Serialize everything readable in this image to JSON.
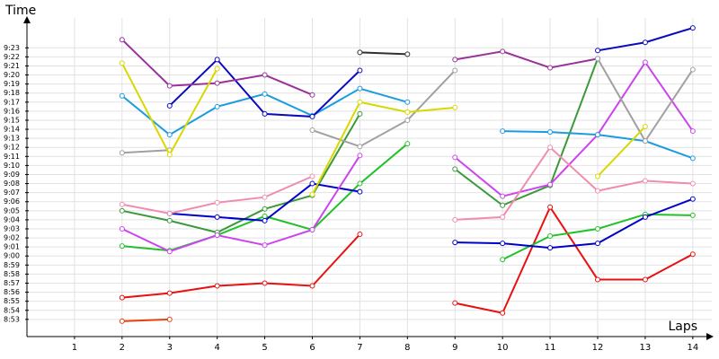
{
  "chart_data": {
    "type": "line",
    "y_label": "Time",
    "x_label": "Laps",
    "x": [
      1,
      2,
      3,
      4,
      5,
      6,
      7,
      8,
      9,
      10,
      11,
      12,
      13,
      14
    ],
    "xlim": [
      0,
      14.4
    ],
    "xticks": [
      1,
      2,
      3,
      4,
      5,
      6,
      7,
      8,
      9,
      10,
      11,
      12,
      13,
      14
    ],
    "ylim": [
      531.1,
      566.3
    ],
    "yticks": [
      {
        "value": 533,
        "label": "8:53"
      },
      {
        "value": 534,
        "label": "8:54"
      },
      {
        "value": 535,
        "label": "8:55"
      },
      {
        "value": 536,
        "label": "8:56"
      },
      {
        "value": 537,
        "label": "8:57"
      },
      {
        "value": 538,
        "label": "8:58"
      },
      {
        "value": 539,
        "label": "8:59"
      },
      {
        "value": 540,
        "label": "9:00"
      },
      {
        "value": 541,
        "label": "9:01"
      },
      {
        "value": 542,
        "label": "9:02"
      },
      {
        "value": 543,
        "label": "9:03"
      },
      {
        "value": 544,
        "label": "9:04"
      },
      {
        "value": 545,
        "label": "9:05"
      },
      {
        "value": 546,
        "label": "9:06"
      },
      {
        "value": 547,
        "label": "9:07"
      },
      {
        "value": 548,
        "label": "9:08"
      },
      {
        "value": 549,
        "label": "9:09"
      },
      {
        "value": 550,
        "label": "9:10"
      },
      {
        "value": 551,
        "label": "9:11"
      },
      {
        "value": 552,
        "label": "9:12"
      },
      {
        "value": 553,
        "label": "9:13"
      },
      {
        "value": 554,
        "label": "9:14"
      },
      {
        "value": 555,
        "label": "9:15"
      },
      {
        "value": 556,
        "label": "9:16"
      },
      {
        "value": 557,
        "label": "9:17"
      },
      {
        "value": 558,
        "label": "9:18"
      },
      {
        "value": 559,
        "label": "9:19"
      },
      {
        "value": 560,
        "label": "9:20"
      },
      {
        "value": 561,
        "label": "9:21"
      },
      {
        "value": 562,
        "label": "9:22"
      },
      {
        "value": 563,
        "label": "9:23"
      }
    ],
    "grid": true,
    "series": [
      {
        "color": "#e81010",
        "values": [
          null,
          535.4,
          535.9,
          536.7,
          537.0,
          536.7,
          542.4,
          null,
          534.8,
          533.7,
          545.4,
          537.4,
          537.4,
          540.2
        ]
      },
      {
        "color": "#e84010",
        "values": [
          null,
          532.8,
          533.0,
          null,
          null,
          null,
          null,
          null,
          null,
          null,
          null,
          null,
          null,
          null
        ]
      },
      {
        "color": "#22c02a",
        "values": [
          null,
          541.1,
          540.6,
          542.3,
          544.4,
          542.9,
          548.0,
          552.4,
          null,
          539.6,
          542.2,
          543.0,
          544.6,
          544.5
        ]
      },
      {
        "color": "#3a9a3a",
        "values": [
          null,
          545.0,
          543.9,
          542.6,
          545.2,
          546.7,
          555.7,
          null,
          549.6,
          545.6,
          547.8,
          561.8,
          null,
          null
        ]
      },
      {
        "color": "#0000cc",
        "values": [
          null,
          null,
          544.7,
          544.3,
          543.9,
          548.0,
          547.1,
          null,
          541.5,
          541.4,
          540.9,
          541.4,
          544.3,
          546.3
        ]
      },
      {
        "color": "#cc44ee",
        "values": [
          null,
          543.0,
          540.5,
          542.3,
          541.2,
          542.9,
          551.1,
          null,
          550.9,
          546.6,
          547.9,
          553.4,
          561.4,
          553.8
        ]
      },
      {
        "color": "#f08cb0",
        "values": [
          null,
          545.7,
          544.7,
          545.9,
          546.5,
          548.8,
          null,
          null,
          544.0,
          544.3,
          552.0,
          547.2,
          548.3,
          548.0
        ]
      },
      {
        "color": "#1c9ce0",
        "values": [
          null,
          557.7,
          553.4,
          556.5,
          557.9,
          555.5,
          558.5,
          557.0,
          null,
          553.8,
          553.7,
          553.4,
          552.7,
          550.8
        ]
      },
      {
        "color": "#0a0abe",
        "values": [
          null,
          null,
          556.6,
          561.7,
          555.7,
          555.4,
          560.5,
          null,
          null,
          null,
          null,
          562.7,
          563.6,
          565.2
        ]
      },
      {
        "color": "#993399",
        "values": [
          null,
          563.9,
          558.8,
          559.1,
          560.0,
          557.8,
          null,
          null,
          561.7,
          562.6,
          560.8,
          561.8,
          null,
          null
        ]
      },
      {
        "color": "#a0a0a0",
        "values": [
          null,
          551.4,
          551.7,
          null,
          null,
          553.9,
          552.1,
          555.0,
          560.5,
          null,
          null,
          561.8,
          552.7,
          560.6
        ]
      },
      {
        "color": "#d8d800",
        "values": [
          null,
          561.3,
          551.2,
          560.7,
          null,
          546.8,
          557.0,
          555.9,
          556.4,
          null,
          null,
          548.8,
          554.3,
          null
        ]
      },
      {
        "color": "#303030",
        "values": [
          null,
          null,
          null,
          null,
          null,
          null,
          562.5,
          562.3,
          null,
          null,
          null,
          null,
          null,
          null
        ]
      }
    ]
  }
}
